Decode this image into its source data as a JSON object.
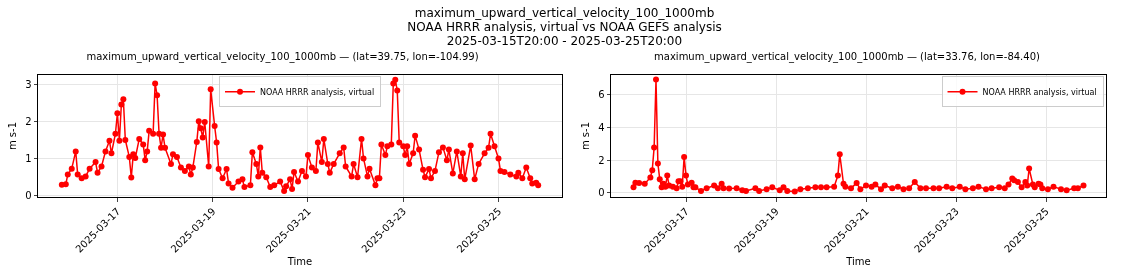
{
  "chart_data": [
    {
      "type": "line",
      "title": "maximum_upward_vertical_velocity_100_1000mb — (lat=39.75, lon=-104.99)",
      "xlabel": "Time",
      "ylabel": "m s-1",
      "annotations": [
        "maximum_upward_vertical_velocity_100_1000mb",
        "NOAA HRRR analysis, virtual vs NOAA GEFS analysis",
        "2025-03-15T20:00 - 2025-03-25T20:00"
      ],
      "xlim": [
        "2025-03-15T08:00",
        "2025-03-26T08:00"
      ],
      "ylim": [
        -0.05,
        3.27
      ],
      "yticks": [
        0,
        1,
        2,
        3
      ],
      "xticks": [
        {
          "value": "2025-03-17",
          "label": "2025-03-17"
        },
        {
          "value": "2025-03-19",
          "label": "2025-03-19"
        },
        {
          "value": "2025-03-21",
          "label": "2025-03-21"
        },
        {
          "value": "2025-03-23",
          "label": "2025-03-23"
        },
        {
          "value": "2025-03-25",
          "label": "2025-03-25"
        }
      ],
      "grid": true,
      "legend": "top",
      "marker": "circle",
      "line_style": "solid",
      "series": [
        {
          "name": "NOAA HRRR analysis, virtual",
          "color": "#ff0000",
          "x": [
            "2025-03-15T20:00",
            "2025-03-15T22:00",
            "2025-03-15T23:00",
            "2025-03-16T01:00",
            "2025-03-16T03:00",
            "2025-03-16T04:00",
            "2025-03-16T06:00",
            "2025-03-16T08:00",
            "2025-03-16T10:00",
            "2025-03-16T13:00",
            "2025-03-16T14:00",
            "2025-03-16T16:00",
            "2025-03-16T18:00",
            "2025-03-16T20:00",
            "2025-03-16T21:00",
            "2025-03-16T23:00",
            "2025-03-17T00:00",
            "2025-03-17T01:00",
            "2025-03-17T02:00",
            "2025-03-17T03:00",
            "2025-03-17T04:00",
            "2025-03-17T06:00",
            "2025-03-17T07:00",
            "2025-03-17T08:00",
            "2025-03-17T09:00",
            "2025-03-17T11:00",
            "2025-03-17T13:00",
            "2025-03-17T14:00",
            "2025-03-17T15:00",
            "2025-03-17T16:00",
            "2025-03-17T18:00",
            "2025-03-17T19:00",
            "2025-03-17T20:00",
            "2025-03-17T21:00",
            "2025-03-17T22:00",
            "2025-03-17T23:00",
            "2025-03-18T00:00",
            "2025-03-18T03:00",
            "2025-03-18T04:00",
            "2025-03-18T06:00",
            "2025-03-18T08:00",
            "2025-03-18T10:00",
            "2025-03-18T12:00",
            "2025-03-18T13:00",
            "2025-03-18T14:00",
            "2025-03-18T16:00",
            "2025-03-18T17:00",
            "2025-03-18T18:00",
            "2025-03-18T19:00",
            "2025-03-18T20:00",
            "2025-03-18T22:00",
            "2025-03-18T23:00",
            "2025-03-19T01:00",
            "2025-03-19T02:00",
            "2025-03-19T03:00",
            "2025-03-19T05:00",
            "2025-03-19T07:00",
            "2025-03-19T08:00",
            "2025-03-19T10:00",
            "2025-03-19T13:00",
            "2025-03-19T15:00",
            "2025-03-19T16:00",
            "2025-03-19T19:00",
            "2025-03-19T20:00",
            "2025-03-19T22:00",
            "2025-03-19T23:00",
            "2025-03-20T00:00",
            "2025-03-20T01:00",
            "2025-03-20T03:00",
            "2025-03-20T05:00",
            "2025-03-20T07:00",
            "2025-03-20T10:00",
            "2025-03-20T12:00",
            "2025-03-20T13:00",
            "2025-03-20T15:00",
            "2025-03-20T16:00",
            "2025-03-20T17:00",
            "2025-03-20T19:00",
            "2025-03-20T21:00",
            "2025-03-20T23:00",
            "2025-03-21T00:00",
            "2025-03-21T02:00",
            "2025-03-21T04:00",
            "2025-03-21T05:00",
            "2025-03-21T07:00",
            "2025-03-21T08:00",
            "2025-03-21T10:00",
            "2025-03-21T11:00",
            "2025-03-21T13:00",
            "2025-03-21T16:00",
            "2025-03-21T18:00",
            "2025-03-21T19:00",
            "2025-03-21T22:00",
            "2025-03-21T23:00",
            "2025-03-22T01:00",
            "2025-03-22T03:00",
            "2025-03-22T04:00",
            "2025-03-22T06:00",
            "2025-03-22T07:00",
            "2025-03-22T10:00",
            "2025-03-22T11:00",
            "2025-03-22T12:00",
            "2025-03-22T13:00",
            "2025-03-22T15:00",
            "2025-03-22T16:00",
            "2025-03-22T18:00",
            "2025-03-22T19:00",
            "2025-03-22T20:00",
            "2025-03-22T21:00",
            "2025-03-22T22:00",
            "2025-03-23T00:00",
            "2025-03-23T01:00",
            "2025-03-23T02:00",
            "2025-03-23T03:00",
            "2025-03-23T05:00",
            "2025-03-23T06:00",
            "2025-03-23T08:00",
            "2025-03-23T10:00",
            "2025-03-23T11:00",
            "2025-03-23T13:00",
            "2025-03-23T14:00",
            "2025-03-23T16:00",
            "2025-03-23T18:00",
            "2025-03-23T20:00",
            "2025-03-23T22:00",
            "2025-03-23T23:00",
            "2025-03-24T01:00",
            "2025-03-24T03:00",
            "2025-03-24T05:00",
            "2025-03-24T06:00",
            "2025-03-24T07:00",
            "2025-03-24T10:00",
            "2025-03-24T12:00",
            "2025-03-24T14:00",
            "2025-03-24T17:00",
            "2025-03-24T19:00",
            "2025-03-24T20:00",
            "2025-03-24T22:00",
            "2025-03-25T00:00",
            "2025-03-25T01:00",
            "2025-03-25T03:00",
            "2025-03-25T06:00",
            "2025-03-25T09:00",
            "2025-03-25T10:00",
            "2025-03-25T12:00",
            "2025-03-25T14:00",
            "2025-03-25T16:00",
            "2025-03-25T17:00",
            "2025-03-25T19:00",
            "2025-03-25T20:00"
          ],
          "values": [
            0.28,
            0.3,
            0.56,
            0.72,
            1.19,
            0.56,
            0.46,
            0.51,
            0.72,
            0.9,
            0.61,
            0.78,
            1.19,
            1.48,
            1.14,
            1.67,
            2.23,
            1.48,
            2.47,
            2.61,
            1.5,
            1.04,
            0.48,
            1.11,
            1.01,
            1.53,
            1.38,
            0.95,
            1.19,
            1.75,
            1.67,
            3.04,
            2.72,
            1.67,
            1.29,
            1.65,
            1.29,
            0.85,
            1.11,
            1.04,
            0.75,
            0.66,
            0.78,
            0.56,
            0.75,
            1.45,
            2.01,
            1.82,
            1.57,
            1.99,
            0.78,
            2.88,
            1.88,
            1.43,
            0.71,
            0.46,
            0.71,
            0.32,
            0.2,
            0.37,
            0.43,
            0.22,
            0.27,
            1.17,
            0.85,
            0.51,
            1.3,
            0.61,
            0.49,
            0.22,
            0.27,
            0.37,
            0.11,
            0.24,
            0.43,
            0.17,
            0.63,
            0.37,
            0.66,
            0.51,
            1.09,
            0.75,
            0.66,
            1.43,
            0.9,
            1.53,
            0.85,
            0.61,
            0.85,
            1.14,
            1.3,
            0.78,
            0.51,
            0.85,
            0.49,
            1.53,
            1.0,
            0.51,
            0.72,
            0.27,
            0.46,
            0.46,
            1.38,
            1.09,
            1.33,
            1.38,
            3.04,
            3.14,
            2.85,
            1.43,
            1.33,
            1.09,
            1.33,
            0.85,
            1.14,
            1.62,
            1.24,
            0.69,
            0.49,
            0.71,
            0.46,
            0.66,
            1.17,
            1.3,
            0.95,
            1.24,
            0.59,
            1.19,
            0.51,
            1.14,
            0.43,
            1.35,
            0.43,
            0.85,
            1.14,
            1.29,
            1.67,
            1.33,
            1.0,
            0.66,
            0.63,
            0.56,
            0.51,
            0.61,
            0.46,
            0.75,
            0.46,
            0.32,
            0.34,
            0.27
          ]
        }
      ]
    },
    {
      "type": "line",
      "title": "maximum_upward_vertical_velocity_100_1000mb — (lat=33.76, lon=-84.40)",
      "xlabel": "Time",
      "ylabel": "m s-1",
      "xlim": [
        "2025-03-15T08:00",
        "2025-03-26T08:00"
      ],
      "ylim": [
        -0.26,
        7.2
      ],
      "yticks": [
        0,
        2,
        4,
        6
      ],
      "xticks": [
        {
          "value": "2025-03-17",
          "label": "2025-03-17"
        },
        {
          "value": "2025-03-19",
          "label": "2025-03-19"
        },
        {
          "value": "2025-03-21",
          "label": "2025-03-21"
        },
        {
          "value": "2025-03-23",
          "label": "2025-03-23"
        },
        {
          "value": "2025-03-25",
          "label": "2025-03-25"
        }
      ],
      "grid": true,
      "legend": "top right",
      "marker": "circle",
      "line_style": "solid",
      "series": [
        {
          "name": "NOAA HRRR analysis, virtual",
          "color": "#ff0000",
          "x": [
            "2025-03-15T20:00",
            "2025-03-15T21:00",
            "2025-03-15T23:00",
            "2025-03-16T02:00",
            "2025-03-16T05:00",
            "2025-03-16T06:00",
            "2025-03-16T07:00",
            "2025-03-16T08:00",
            "2025-03-16T09:00",
            "2025-03-16T10:00",
            "2025-03-16T11:00",
            "2025-03-16T12:00",
            "2025-03-16T13:00",
            "2025-03-16T14:00",
            "2025-03-16T15:00",
            "2025-03-16T17:00",
            "2025-03-16T19:00",
            "2025-03-16T20:00",
            "2025-03-16T21:00",
            "2025-03-16T22:00",
            "2025-03-16T23:00",
            "2025-03-17T00:00",
            "2025-03-17T01:00",
            "2025-03-17T03:00",
            "2025-03-17T04:00",
            "2025-03-17T05:00",
            "2025-03-17T08:00",
            "2025-03-17T11:00",
            "2025-03-17T15:00",
            "2025-03-17T17:00",
            "2025-03-17T19:00",
            "2025-03-17T20:00",
            "2025-03-17T23:00",
            "2025-03-18T03:00",
            "2025-03-18T06:00",
            "2025-03-18T08:00",
            "2025-03-18T13:00",
            "2025-03-18T15:00",
            "2025-03-18T19:00",
            "2025-03-18T22:00",
            "2025-03-19T02:00",
            "2025-03-19T04:00",
            "2025-03-19T06:00",
            "2025-03-19T10:00",
            "2025-03-19T13:00",
            "2025-03-19T17:00",
            "2025-03-19T21:00",
            "2025-03-20T00:00",
            "2025-03-20T03:00",
            "2025-03-20T07:00",
            "2025-03-20T09:00",
            "2025-03-20T10:00",
            "2025-03-20T12:00",
            "2025-03-20T13:00",
            "2025-03-20T16:00",
            "2025-03-20T19:00",
            "2025-03-20T21:00",
            "2025-03-21T00:00",
            "2025-03-21T03:00",
            "2025-03-21T05:00",
            "2025-03-21T08:00",
            "2025-03-21T10:00",
            "2025-03-21T14:00",
            "2025-03-21T17:00",
            "2025-03-21T20:00",
            "2025-03-21T23:00",
            "2025-03-22T02:00",
            "2025-03-22T05:00",
            "2025-03-22T08:00",
            "2025-03-22T12:00",
            "2025-03-22T15:00",
            "2025-03-22T19:00",
            "2025-03-22T22:00",
            "2025-03-23T02:00",
            "2025-03-23T05:00",
            "2025-03-23T09:00",
            "2025-03-23T12:00",
            "2025-03-23T16:00",
            "2025-03-23T19:00",
            "2025-03-23T23:00",
            "2025-03-24T02:00",
            "2025-03-24T04:00",
            "2025-03-24T06:00",
            "2025-03-24T07:00",
            "2025-03-24T09:00",
            "2025-03-24T11:00",
            "2025-03-24T13:00",
            "2025-03-24T14:00",
            "2025-03-24T15:00",
            "2025-03-24T17:00",
            "2025-03-24T18:00",
            "2025-03-24T20:00",
            "2025-03-24T21:00",
            "2025-03-24T22:00",
            "2025-03-25T01:00",
            "2025-03-25T04:00",
            "2025-03-25T08:00",
            "2025-03-25T11:00",
            "2025-03-25T15:00",
            "2025-03-25T17:00",
            "2025-03-25T20:00"
          ],
          "values": [
            0.33,
            0.61,
            0.59,
            0.55,
            0.94,
            1.38,
            2.77,
            6.92,
            1.79,
            0.83,
            0.33,
            0.55,
            0.37,
            1.05,
            0.44,
            0.37,
            0.28,
            0.7,
            0.7,
            0.37,
            2.18,
            1.05,
            0.5,
            0.61,
            0.33,
            0.33,
            0.11,
            0.28,
            0.44,
            0.28,
            0.55,
            0.28,
            0.26,
            0.28,
            0.15,
            0.11,
            0.28,
            0.11,
            0.22,
            0.33,
            0.15,
            0.33,
            0.11,
            0.07,
            0.22,
            0.28,
            0.33,
            0.33,
            0.33,
            0.37,
            1.05,
            2.36,
            0.55,
            0.37,
            0.28,
            0.59,
            0.22,
            0.44,
            0.37,
            0.5,
            0.22,
            0.44,
            0.28,
            0.37,
            0.22,
            0.28,
            0.66,
            0.28,
            0.28,
            0.28,
            0.28,
            0.37,
            0.28,
            0.37,
            0.22,
            0.28,
            0.37,
            0.22,
            0.28,
            0.33,
            0.28,
            0.5,
            0.87,
            0.76,
            0.66,
            0.33,
            0.66,
            0.44,
            1.48,
            0.5,
            0.33,
            0.55,
            0.5,
            0.28,
            0.22,
            0.37,
            0.22,
            0.15,
            0.28,
            0.28,
            0.44
          ]
        }
      ]
    }
  ]
}
